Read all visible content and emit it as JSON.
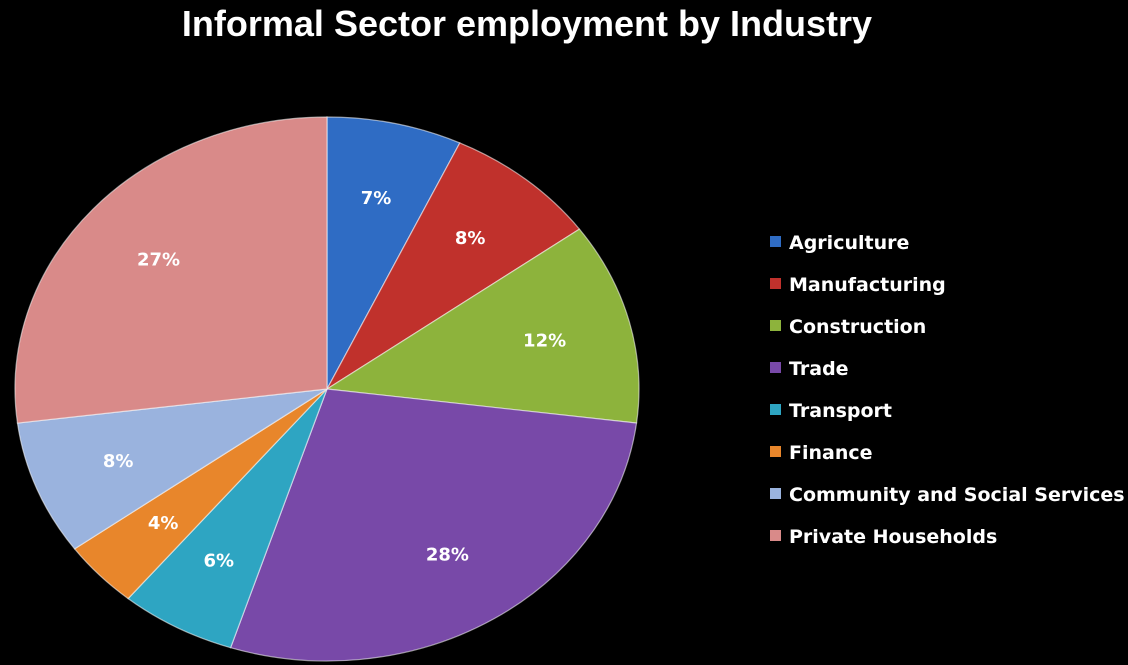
{
  "chart_data": {
    "type": "pie",
    "title": "Informal Sector employment by Industry",
    "categories": [
      "Agriculture",
      "Manufacturing",
      "Construction",
      "Trade",
      "Transport",
      "Finance",
      "Community and Social Services",
      "Private Households"
    ],
    "values": [
      7,
      8,
      12,
      28,
      6,
      4,
      8,
      27
    ],
    "labels": [
      "7%",
      "8%",
      "12%",
      "28%",
      "6%",
      "4%",
      "8%",
      "27%"
    ],
    "colors": [
      "#2f6cc4",
      "#c0312c",
      "#8db33c",
      "#7849a8",
      "#2ea5c2",
      "#e8862b",
      "#9ab3de",
      "#d98a89"
    ],
    "legend_position": "right",
    "start_angle_deg": 0,
    "direction": "clockwise"
  }
}
